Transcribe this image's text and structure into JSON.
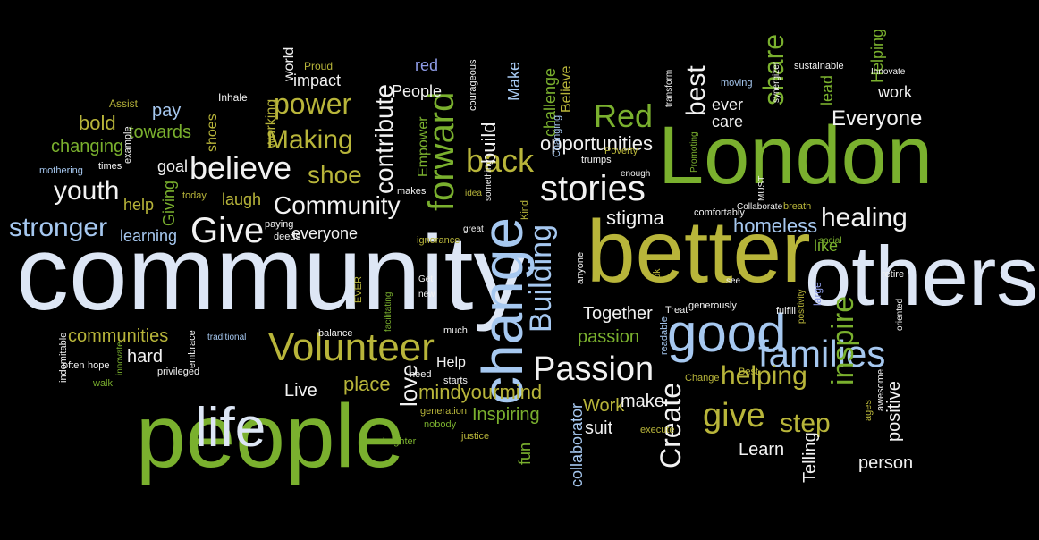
{
  "palette": {
    "background": "#000000",
    "lightblue": "#a6c8f0",
    "white": "#f2f2f2",
    "green": "#7ab02e",
    "olive": "#b8b53a",
    "periwinkle": "#8e9be6",
    "pale": "#dde6f5"
  },
  "words": [
    {
      "text": "community",
      "color": "pale"
    },
    {
      "text": "people",
      "color": "green"
    },
    {
      "text": "better",
      "color": "olive"
    },
    {
      "text": "London",
      "color": "green"
    },
    {
      "text": "others",
      "color": "pale"
    },
    {
      "text": "change",
      "color": "lightblue"
    },
    {
      "text": "life",
      "color": "pale"
    },
    {
      "text": "good",
      "color": "lightblue"
    },
    {
      "text": "Volunteer",
      "color": "olive"
    },
    {
      "text": "believe",
      "color": "white"
    },
    {
      "text": "Passion",
      "color": "white"
    },
    {
      "text": "families",
      "color": "lightblue"
    },
    {
      "text": "Give",
      "color": "white"
    },
    {
      "text": "stories",
      "color": "white"
    },
    {
      "text": "youth",
      "color": "white"
    },
    {
      "text": "stronger",
      "color": "lightblue"
    },
    {
      "text": "back",
      "color": "olive"
    },
    {
      "text": "forward",
      "color": "green"
    },
    {
      "text": "Building",
      "color": "lightblue"
    },
    {
      "text": "Community",
      "color": "white"
    },
    {
      "text": "give",
      "color": "olive"
    },
    {
      "text": "helping",
      "color": "olive"
    },
    {
      "text": "healing",
      "color": "white"
    },
    {
      "text": "Create",
      "color": "white"
    },
    {
      "text": "inspire",
      "color": "green"
    },
    {
      "text": "Red",
      "color": "green"
    },
    {
      "text": "share",
      "color": "green"
    },
    {
      "text": "best",
      "color": "white"
    },
    {
      "text": "Making",
      "color": "olive"
    },
    {
      "text": "power",
      "color": "olive"
    },
    {
      "text": "shoe",
      "color": "olive"
    },
    {
      "text": "contribute",
      "color": "white"
    },
    {
      "text": "step",
      "color": "olive"
    },
    {
      "text": "love",
      "color": "white"
    },
    {
      "text": "mindyourmind",
      "color": "olive"
    },
    {
      "text": "opportunities",
      "color": "white"
    },
    {
      "text": "Everyone",
      "color": "white"
    },
    {
      "text": "homeless",
      "color": "lightblue"
    },
    {
      "text": "stigma",
      "color": "white"
    },
    {
      "text": "communities",
      "color": "olive"
    },
    {
      "text": "hard",
      "color": "white"
    },
    {
      "text": "changing",
      "color": "green"
    },
    {
      "text": "bold",
      "color": "olive"
    },
    {
      "text": "towards",
      "color": "green"
    },
    {
      "text": "Together",
      "color": "white"
    },
    {
      "text": "passion",
      "color": "green"
    },
    {
      "text": "Inspiring",
      "color": "green"
    },
    {
      "text": "Work",
      "color": "olive"
    },
    {
      "text": "make",
      "color": "white"
    },
    {
      "text": "suit",
      "color": "white"
    },
    {
      "text": "Learn",
      "color": "white"
    },
    {
      "text": "person",
      "color": "white"
    },
    {
      "text": "Telling",
      "color": "white"
    },
    {
      "text": "positive",
      "color": "white"
    },
    {
      "text": "place",
      "color": "olive"
    },
    {
      "text": "Live",
      "color": "white"
    },
    {
      "text": "learning",
      "color": "lightblue"
    },
    {
      "text": "help",
      "color": "olive"
    },
    {
      "text": "laugh",
      "color": "olive"
    },
    {
      "text": "everyone",
      "color": "white"
    },
    {
      "text": "Giving",
      "color": "green"
    },
    {
      "text": "People",
      "color": "white"
    },
    {
      "text": "impact",
      "color": "white"
    },
    {
      "text": "build",
      "color": "white"
    },
    {
      "text": "Make",
      "color": "lightblue"
    },
    {
      "text": "challenge",
      "color": "green"
    },
    {
      "text": "Believe",
      "color": "olive"
    },
    {
      "text": "care",
      "color": "white"
    },
    {
      "text": "ever",
      "color": "white"
    },
    {
      "text": "work",
      "color": "white"
    },
    {
      "text": "lead",
      "color": "green"
    },
    {
      "text": "Helping",
      "color": "green"
    },
    {
      "text": "like",
      "color": "green"
    },
    {
      "text": "Empower",
      "color": "green"
    },
    {
      "text": "fun",
      "color": "green"
    },
    {
      "text": "collaborator",
      "color": "lightblue"
    },
    {
      "text": "Help",
      "color": "white"
    },
    {
      "text": "red",
      "color": "periwinkle"
    },
    {
      "text": "pay",
      "color": "lightblue"
    },
    {
      "text": "shoes",
      "color": "olive"
    },
    {
      "text": "working",
      "color": "olive"
    },
    {
      "text": "goal",
      "color": "white"
    },
    {
      "text": "world",
      "color": "white"
    },
    {
      "text": "Proud",
      "color": "olive"
    },
    {
      "text": "courageous",
      "color": "white"
    },
    {
      "text": "Assist",
      "color": "olive"
    },
    {
      "text": "Inhale",
      "color": "white"
    },
    {
      "text": "mothering",
      "color": "lightblue"
    },
    {
      "text": "times",
      "color": "white"
    },
    {
      "text": "example",
      "color": "white"
    },
    {
      "text": "today",
      "color": "olive"
    },
    {
      "text": "makes",
      "color": "white"
    },
    {
      "text": "deeds",
      "color": "white"
    },
    {
      "text": "paying",
      "color": "white"
    },
    {
      "text": "ignorance",
      "color": "olive"
    },
    {
      "text": "idea",
      "color": "olive"
    },
    {
      "text": "something",
      "color": "white"
    },
    {
      "text": "great",
      "color": "white"
    },
    {
      "text": "Kind",
      "color": "olive"
    },
    {
      "text": "Poverty",
      "color": "olive"
    },
    {
      "text": "enough",
      "color": "white"
    },
    {
      "text": "Changing",
      "color": "lightblue"
    },
    {
      "text": "trumps",
      "color": "white"
    },
    {
      "text": "moving",
      "color": "lightblue"
    },
    {
      "text": "transform",
      "color": "white"
    },
    {
      "text": "Promoting",
      "color": "green"
    },
    {
      "text": "synergizer",
      "color": "white"
    },
    {
      "text": "sustainable",
      "color": "white"
    },
    {
      "text": "Innovate",
      "color": "white"
    },
    {
      "text": "comfortably",
      "color": "white"
    },
    {
      "text": "MUST",
      "color": "white"
    },
    {
      "text": "Collaborate",
      "color": "white"
    },
    {
      "text": "breath",
      "color": "olive"
    },
    {
      "text": "social",
      "color": "green"
    },
    {
      "text": "see",
      "color": "white"
    },
    {
      "text": "large",
      "color": "periwinkle"
    },
    {
      "text": "retire",
      "color": "white"
    },
    {
      "text": "oriented",
      "color": "white"
    },
    {
      "text": "fulfill",
      "color": "white"
    },
    {
      "text": "generously",
      "color": "white"
    },
    {
      "text": "Treat",
      "color": "white"
    },
    {
      "text": "positivity",
      "color": "olive"
    },
    {
      "text": "awesome",
      "color": "white"
    },
    {
      "text": "ages",
      "color": "olive"
    },
    {
      "text": "Best",
      "color": "olive"
    },
    {
      "text": "Change",
      "color": "olive"
    },
    {
      "text": "readable",
      "color": "lightblue"
    },
    {
      "text": "execute",
      "color": "olive"
    },
    {
      "text": "ok",
      "color": "olive"
    },
    {
      "text": "anyone",
      "color": "white"
    },
    {
      "text": "Get",
      "color": "white"
    },
    {
      "text": "new",
      "color": "white"
    },
    {
      "text": "EVER",
      "color": "olive"
    },
    {
      "text": "much",
      "color": "white"
    },
    {
      "text": "need",
      "color": "white"
    },
    {
      "text": "starts",
      "color": "white"
    },
    {
      "text": "generation",
      "color": "olive"
    },
    {
      "text": "nobody",
      "color": "green"
    },
    {
      "text": "justice",
      "color": "olive"
    },
    {
      "text": "brighter",
      "color": "green"
    },
    {
      "text": "facilitating",
      "color": "green"
    },
    {
      "text": "balance",
      "color": "white"
    },
    {
      "text": "traditional",
      "color": "lightblue"
    },
    {
      "text": "embrace",
      "color": "white"
    },
    {
      "text": "privileged",
      "color": "white"
    },
    {
      "text": "innovate",
      "color": "green"
    },
    {
      "text": "walk",
      "color": "green"
    },
    {
      "text": "often",
      "color": "white"
    },
    {
      "text": "hope",
      "color": "white"
    },
    {
      "text": "indomitable",
      "color": "white"
    }
  ]
}
